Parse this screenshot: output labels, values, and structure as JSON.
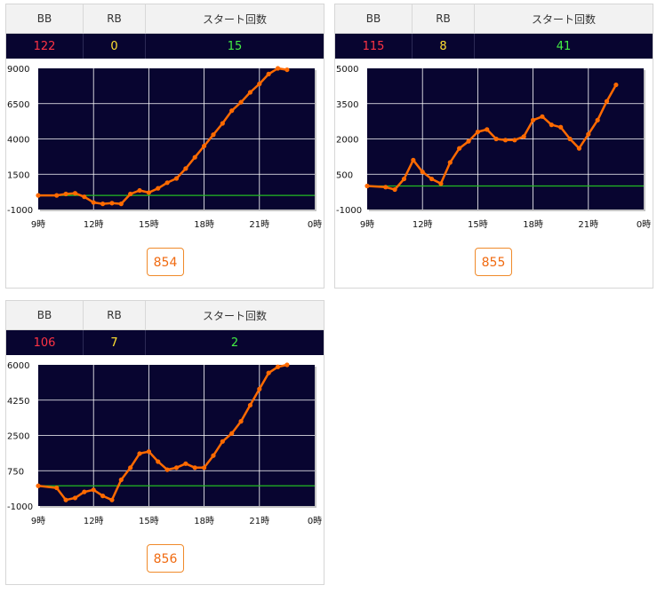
{
  "header": {
    "bb": "BB",
    "rb": "RB",
    "start": "スタート回数"
  },
  "cards": [
    {
      "bb": "122",
      "rb": "0",
      "start": "15",
      "unit": "854"
    },
    {
      "bb": "115",
      "rb": "8",
      "start": "41",
      "unit": "855"
    },
    {
      "bb": "106",
      "rb": "7",
      "start": "2",
      "unit": "856"
    }
  ],
  "colors": {
    "plot_bg": "#080530",
    "line": "#ff6a00",
    "baseline": "#22bb22",
    "grid": "#ffffff"
  },
  "chart_data": [
    {
      "type": "line",
      "x_ticks": [
        "9時",
        "12時",
        "15時",
        "18時",
        "21時",
        "0時"
      ],
      "x_range": [
        9,
        24
      ],
      "y_ticks": [
        "9000",
        "6500",
        "4000",
        "1500",
        "-1000"
      ],
      "ylim": [
        -1000,
        9000
      ],
      "baseline": 0,
      "x": [
        9,
        10,
        10.5,
        11,
        11.5,
        12,
        12.5,
        13,
        13.5,
        14,
        14.5,
        15,
        15.5,
        16,
        16.5,
        17,
        17.5,
        18,
        18.5,
        19,
        19.5,
        20,
        20.5,
        21,
        21.5,
        22,
        22.5
      ],
      "y": [
        0,
        0,
        100,
        150,
        -100,
        -500,
        -600,
        -550,
        -600,
        100,
        350,
        200,
        500,
        900,
        1200,
        1900,
        2700,
        3500,
        4300,
        5100,
        6000,
        6600,
        7300,
        7900,
        8600,
        9000,
        8900
      ]
    },
    {
      "type": "line",
      "x_ticks": [
        "9時",
        "12時",
        "15時",
        "18時",
        "21時",
        "0時"
      ],
      "x_range": [
        9,
        24
      ],
      "y_ticks": [
        "5000",
        "3500",
        "2000",
        "500",
        "-1000"
      ],
      "ylim": [
        -1000,
        5000
      ],
      "baseline": 0,
      "x": [
        9,
        10,
        10.5,
        11,
        11.5,
        12,
        12.5,
        13,
        13.5,
        14,
        14.5,
        15,
        15.5,
        16,
        16.5,
        17,
        17.5,
        18,
        18.5,
        19,
        19.5,
        20,
        20.5,
        21,
        21.5,
        22,
        22.5
      ],
      "y": [
        0,
        -50,
        -150,
        300,
        1100,
        600,
        300,
        100,
        1000,
        1600,
        1900,
        2300,
        2400,
        2000,
        1950,
        1950,
        2100,
        2800,
        2950,
        2600,
        2500,
        2000,
        1600,
        2200,
        2800,
        3600,
        4300
      ]
    },
    {
      "type": "line",
      "x_ticks": [
        "9時",
        "12時",
        "15時",
        "18時",
        "21時",
        "0時"
      ],
      "x_range": [
        9,
        24
      ],
      "y_ticks": [
        "6000",
        "4250",
        "2500",
        "750",
        "-1000"
      ],
      "ylim": [
        -1000,
        6000
      ],
      "baseline": 0,
      "x": [
        9,
        10,
        10.5,
        11,
        11.5,
        12,
        12.5,
        13,
        13.5,
        14,
        14.5,
        15,
        15.5,
        16,
        16.5,
        17,
        17.5,
        18,
        18.5,
        19,
        19.5,
        20,
        20.5,
        21,
        21.5,
        22,
        22.5
      ],
      "y": [
        0,
        -100,
        -700,
        -600,
        -300,
        -200,
        -500,
        -700,
        300,
        900,
        1600,
        1700,
        1200,
        800,
        900,
        1100,
        900,
        900,
        1500,
        2200,
        2600,
        3200,
        4000,
        4800,
        5600,
        5900,
        6000
      ]
    }
  ]
}
